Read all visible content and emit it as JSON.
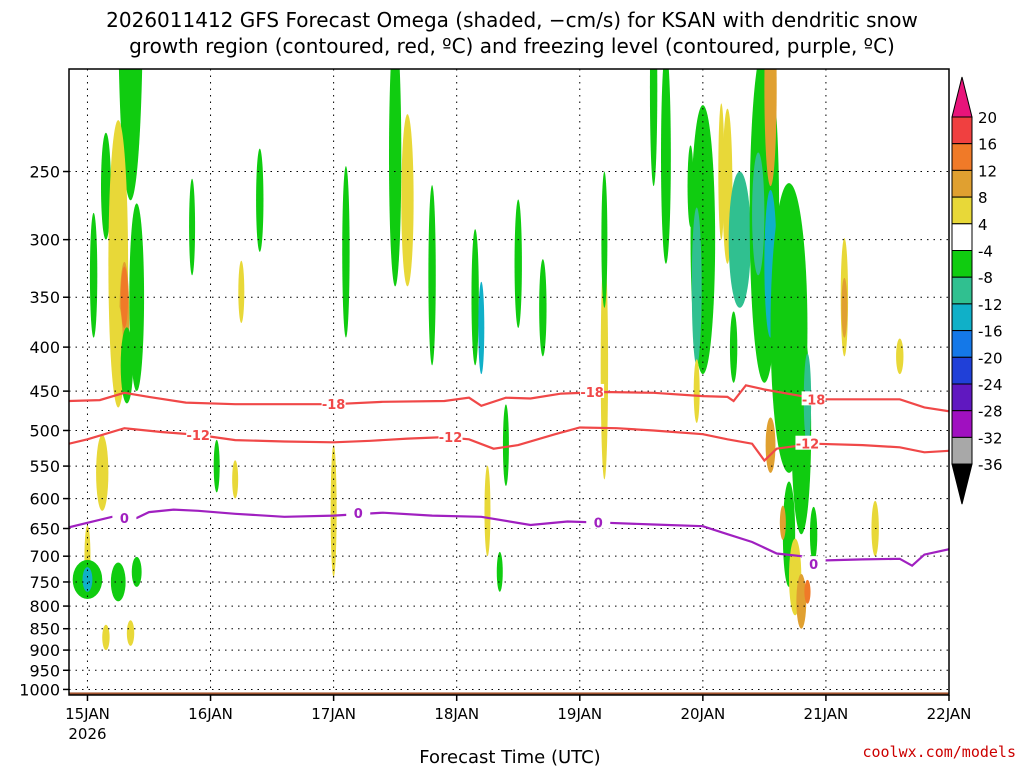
{
  "title": {
    "line1": "2026011412 GFS Forecast Omega (shaded, −cm/s) for KSAN with dendritic snow",
    "line2": "growth region (contoured, red, ºC) and freezing level (contoured, purple, ºC)"
  },
  "credit": "coolwx.com/models",
  "chart_data": {
    "type": "heatmap",
    "xlabel": "Forecast Time (UTC)",
    "ylabel": "",
    "x_ticks": [
      "15JAN",
      "16JAN",
      "17JAN",
      "18JAN",
      "19JAN",
      "20JAN",
      "21JAN",
      "22JAN"
    ],
    "x_tick_year": "2026",
    "x_range_days": [
      -0.15,
      7.0
    ],
    "y_ticks": [
      250,
      300,
      350,
      400,
      450,
      500,
      550,
      600,
      650,
      700,
      750,
      800,
      850,
      900,
      950,
      1000
    ],
    "y_range_hpa": [
      1015,
      190
    ],
    "y_scale": "log-pressure",
    "grid": true,
    "colorbar": {
      "levels": [
        "20",
        "16",
        "12",
        "8",
        "4",
        "-4",
        "-8",
        "-12",
        "-16",
        "-20",
        "-24",
        "-28",
        "-32",
        "-36"
      ],
      "colors": [
        "#e8147a",
        "#f04040",
        "#f07a28",
        "#e0a030",
        "#e8d838",
        "#ffffff",
        "#10cc10",
        "#30c090",
        "#10b0c8",
        "#1478e8",
        "#2040d8",
        "#6018c0",
        "#a010c0",
        "#a8a8a8",
        "#000000"
      ]
    },
    "contours": [
      {
        "name": "-18",
        "color": "#f04848",
        "points": [
          [
            -0.15,
            462
          ],
          [
            0.1,
            461
          ],
          [
            0.3,
            452
          ],
          [
            0.5,
            457
          ],
          [
            0.8,
            464
          ],
          [
            1.2,
            466
          ],
          [
            1.6,
            466
          ],
          [
            2.0,
            466
          ],
          [
            2.4,
            463
          ],
          [
            2.9,
            462
          ],
          [
            3.1,
            458
          ],
          [
            3.2,
            468
          ],
          [
            3.4,
            458
          ],
          [
            3.6,
            459
          ],
          [
            3.85,
            453
          ],
          [
            4.2,
            451
          ],
          [
            4.6,
            452
          ],
          [
            5.0,
            456
          ],
          [
            5.2,
            457
          ],
          [
            5.25,
            462
          ],
          [
            5.35,
            443
          ],
          [
            5.5,
            448
          ],
          [
            5.8,
            456
          ],
          [
            6.0,
            460
          ],
          [
            6.3,
            460
          ],
          [
            6.6,
            460
          ],
          [
            6.8,
            470
          ],
          [
            7.0,
            475
          ]
        ],
        "label_at": [
          [
            2.0,
            466
          ],
          [
            4.1,
            451
          ],
          [
            5.9,
            460
          ]
        ]
      },
      {
        "name": "-12",
        "color": "#f04848",
        "points": [
          [
            -0.15,
            518
          ],
          [
            0.0,
            512
          ],
          [
            0.3,
            497
          ],
          [
            0.6,
            502
          ],
          [
            0.9,
            506
          ],
          [
            1.2,
            513
          ],
          [
            1.6,
            515
          ],
          [
            2.0,
            516
          ],
          [
            2.3,
            514
          ],
          [
            2.6,
            511
          ],
          [
            2.9,
            509
          ],
          [
            3.1,
            512
          ],
          [
            3.3,
            525
          ],
          [
            3.5,
            520
          ],
          [
            3.8,
            505
          ],
          [
            4.0,
            496
          ],
          [
            4.3,
            497
          ],
          [
            4.6,
            500
          ],
          [
            5.0,
            505
          ],
          [
            5.2,
            512
          ],
          [
            5.4,
            518
          ],
          [
            5.5,
            542
          ],
          [
            5.6,
            525
          ],
          [
            5.9,
            518
          ],
          [
            6.3,
            520
          ],
          [
            6.6,
            523
          ],
          [
            6.8,
            530
          ],
          [
            7.0,
            528
          ]
        ],
        "label_at": [
          [
            0.9,
            506
          ],
          [
            2.95,
            509
          ],
          [
            5.85,
            518
          ]
        ]
      },
      {
        "name": "0",
        "color": "#a020c0",
        "points": [
          [
            -0.15,
            648
          ],
          [
            0.2,
            630
          ],
          [
            0.4,
            632
          ],
          [
            0.5,
            622
          ],
          [
            0.7,
            618
          ],
          [
            0.9,
            620
          ],
          [
            1.2,
            625
          ],
          [
            1.6,
            630
          ],
          [
            2.0,
            628
          ],
          [
            2.4,
            623
          ],
          [
            2.8,
            628
          ],
          [
            3.2,
            630
          ],
          [
            3.6,
            644
          ],
          [
            3.9,
            638
          ],
          [
            4.2,
            640
          ],
          [
            4.6,
            643
          ],
          [
            5.0,
            646
          ],
          [
            5.2,
            660
          ],
          [
            5.4,
            674
          ],
          [
            5.6,
            695
          ],
          [
            5.8,
            700
          ],
          [
            5.9,
            718
          ],
          [
            6.0,
            708
          ],
          [
            6.3,
            706
          ],
          [
            6.6,
            705
          ],
          [
            6.7,
            718
          ],
          [
            6.8,
            697
          ],
          [
            7.0,
            687
          ]
        ],
        "label_at": [
          [
            0.3,
            632
          ],
          [
            2.2,
            624
          ],
          [
            4.15,
            640
          ],
          [
            5.9,
            715
          ]
        ]
      }
    ]
  }
}
